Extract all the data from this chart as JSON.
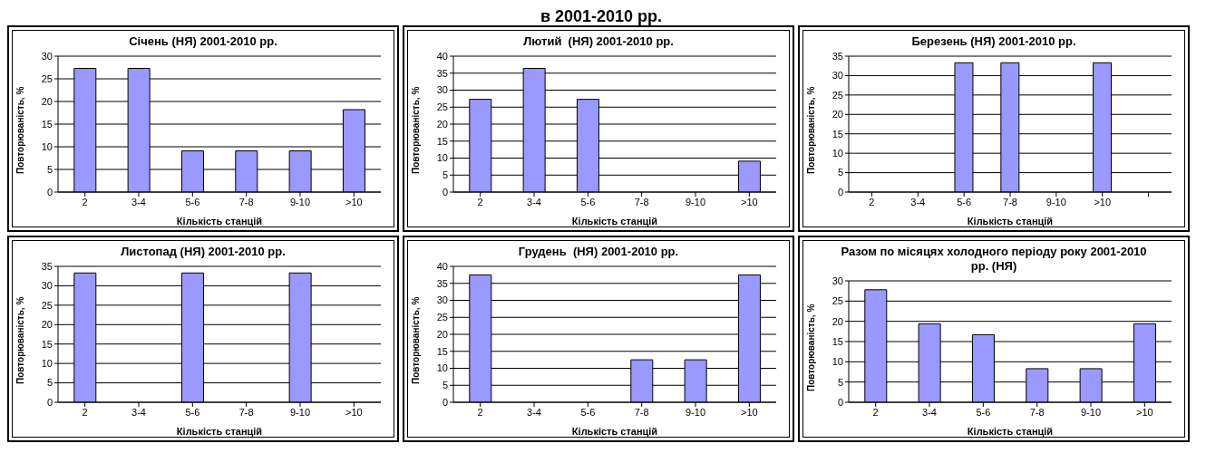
{
  "chart_data": [
    {
      "type": "other",
      "title": "в 2001-2010 рр."
    },
    {
      "type": "bar",
      "title": "Січень (НЯ) 2001-2010 рр.",
      "xlabel": "Кількість станцій",
      "ylabel": "Повторюваність, %",
      "categories": [
        "2",
        "3-4",
        "5-6",
        "7-8",
        "9-10",
        ">10"
      ],
      "values": [
        27.3,
        27.3,
        9.1,
        9.1,
        9.1,
        18.2
      ],
      "color": "#9999ff",
      "ylim": [
        0,
        30
      ],
      "yticks": [
        0,
        5,
        10,
        15,
        20,
        25,
        30
      ],
      "grid": "y",
      "legend": false
    },
    {
      "type": "bar",
      "title": "Лютий  (НЯ) 2001-2010 рр.",
      "xlabel": "Кількість станцій",
      "ylabel": "Повторюваність, %",
      "categories": [
        "2",
        "3-4",
        "5-6",
        "7-8",
        "9-10",
        ">10"
      ],
      "values": [
        27.3,
        36.4,
        27.3,
        0,
        0,
        9.1
      ],
      "color": "#9999ff",
      "ylim": [
        0,
        40
      ],
      "yticks": [
        0,
        5,
        10,
        15,
        20,
        25,
        30,
        35,
        40
      ],
      "grid": "y",
      "legend": false
    },
    {
      "type": "bar",
      "title": "Березень (НЯ) 2001-2010 рр.",
      "xlabel": "Кількість станцій",
      "ylabel": "Повторюваність, %",
      "categories": [
        "2",
        "3-4",
        "5-6",
        "7-8",
        "9-10",
        ">10",
        null
      ],
      "values": [
        0,
        0,
        33.3,
        33.3,
        0,
        33.3,
        0
      ],
      "color": "#9999ff",
      "ylim": [
        0,
        35
      ],
      "yticks": [
        0,
        5,
        10,
        15,
        20,
        25,
        30,
        35
      ],
      "grid": "y",
      "legend": false
    },
    {
      "type": "bar",
      "title": "Листопад (НЯ) 2001-2010 рр.",
      "xlabel": "Кількість станцій",
      "ylabel": "Повторюваність, %",
      "categories": [
        "2",
        "3-4",
        "5-6",
        "7-8",
        "9-10",
        ">10"
      ],
      "values": [
        33.3,
        0,
        33.3,
        0,
        33.3,
        0
      ],
      "color": "#9999ff",
      "ylim": [
        0,
        35
      ],
      "yticks": [
        0,
        5,
        10,
        15,
        20,
        25,
        30,
        35
      ],
      "grid": "y",
      "legend": false
    },
    {
      "type": "bar",
      "title": "Грудень  (НЯ) 2001-2010 рр.",
      "xlabel": "Кількість станцій",
      "ylabel": "Повторюваність, %",
      "categories": [
        "2",
        "3-4",
        "5-6",
        "7-8",
        "9-10",
        ">10"
      ],
      "values": [
        37.5,
        0,
        0,
        12.5,
        12.5,
        37.5
      ],
      "color": "#9999ff",
      "ylim": [
        0,
        40
      ],
      "yticks": [
        0,
        5,
        10,
        15,
        20,
        25,
        30,
        35,
        40
      ],
      "grid": "y",
      "legend": false
    },
    {
      "type": "bar",
      "title": "Разом по місяцях холодного періоду року 2001-2010 рр. (НЯ)",
      "xlabel": "Кількість станцій",
      "ylabel": "Повторюваність, %",
      "categories": [
        "2",
        "3-4",
        "5-6",
        "7-8",
        "9-10",
        ">10"
      ],
      "values": [
        27.8,
        19.4,
        16.7,
        8.3,
        8.3,
        19.4
      ],
      "color": "#9999ff",
      "ylim": [
        0,
        30
      ],
      "yticks": [
        0,
        5,
        10,
        15,
        20,
        25,
        30
      ],
      "grid": "y",
      "legend": false
    }
  ]
}
